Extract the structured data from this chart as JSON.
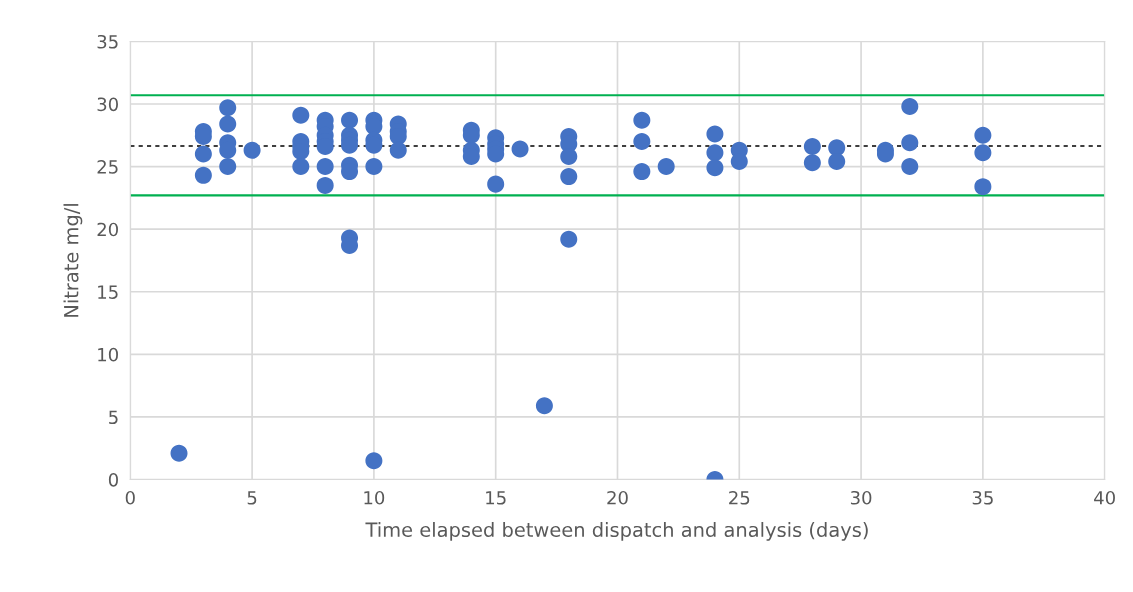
{
  "chart_data": {
    "type": "scatter",
    "xlabel": "Time elapsed between dispatch and analysis (days)",
    "ylabel": "Nitrate mg/l",
    "xlim": [
      0,
      40
    ],
    "xticks": [
      0,
      5,
      10,
      15,
      20,
      25,
      30,
      35,
      40
    ],
    "ylim": [
      0,
      35
    ],
    "yticks": [
      0,
      5,
      10,
      15,
      20,
      25,
      30,
      35
    ],
    "grid": true,
    "marker": "circle",
    "series": [
      {
        "color": "#4472c4",
        "x": [
          2,
          3,
          3,
          3,
          3,
          4,
          4,
          4,
          4,
          4,
          5,
          7,
          7,
          7,
          7,
          7,
          8,
          8,
          8,
          8,
          8,
          8,
          8,
          9,
          9,
          9,
          9,
          9,
          9,
          9,
          9,
          10,
          10,
          10,
          10,
          10,
          10,
          11,
          11,
          11,
          11,
          14,
          14,
          14,
          14,
          15,
          15,
          15,
          15,
          15,
          16,
          17,
          18,
          18,
          18,
          18,
          18,
          21,
          21,
          21,
          22,
          24,
          24,
          24,
          24,
          25,
          25,
          28,
          28,
          29,
          29,
          31,
          31,
          32,
          32,
          32,
          35,
          35,
          35
        ],
        "values": [
          2.1,
          27.8,
          27.4,
          26.0,
          24.3,
          29.7,
          28.4,
          26.9,
          26.3,
          25.0,
          26.3,
          29.1,
          27.0,
          26.6,
          26.2,
          25.0,
          28.7,
          28.2,
          27.5,
          27.0,
          26.6,
          25.0,
          23.5,
          28.7,
          27.5,
          27.1,
          26.7,
          25.1,
          24.6,
          19.3,
          18.7,
          28.7,
          28.2,
          27.1,
          26.7,
          25.0,
          1.5,
          28.4,
          27.8,
          27.4,
          26.3,
          27.9,
          27.5,
          26.3,
          25.8,
          27.3,
          26.8,
          26.4,
          26.0,
          23.6,
          26.4,
          5.9,
          27.4,
          26.8,
          25.8,
          24.2,
          19.2,
          28.7,
          27.0,
          24.6,
          25.0,
          27.6,
          26.1,
          24.9,
          0,
          26.3,
          25.4,
          26.6,
          25.3,
          26.5,
          25.4,
          26.3,
          26.0,
          29.8,
          26.9,
          25.0,
          27.5,
          26.1,
          23.4
        ]
      }
    ],
    "ref_lines": [
      {
        "axis": "y",
        "value": 30.7,
        "color": "#00b050",
        "line_style": "solid"
      },
      {
        "axis": "y",
        "value": 26.65,
        "color": "#000000",
        "line_style": "dashed"
      },
      {
        "axis": "y",
        "value": 22.7,
        "color": "#00b050",
        "line_style": "solid"
      }
    ]
  }
}
